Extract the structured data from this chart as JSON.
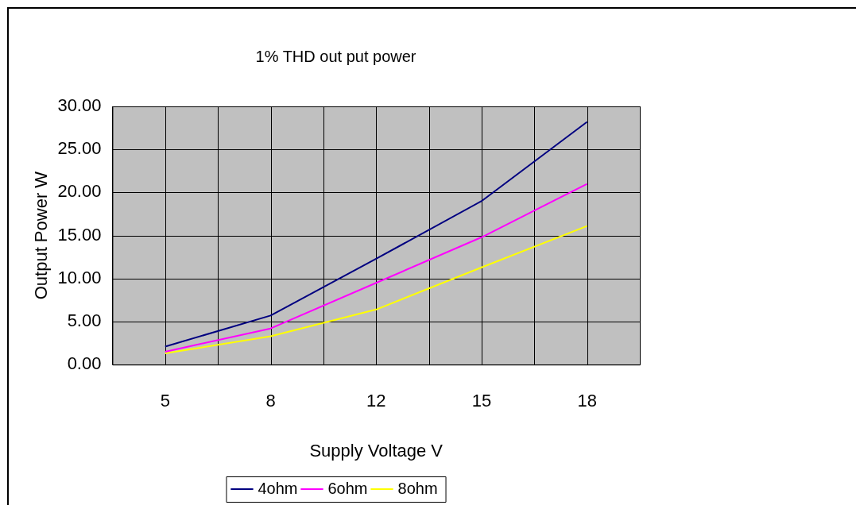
{
  "chart_data": {
    "type": "line",
    "title": "1% THD out put power",
    "xlabel": "Supply Voltage V",
    "ylabel": "Output Power W",
    "categories": [
      "5",
      "8",
      "12",
      "15",
      "18"
    ],
    "series": [
      {
        "name": "4ohm",
        "color": "#000080",
        "values": [
          2.1,
          5.7,
          12.3,
          19.0,
          28.2
        ]
      },
      {
        "name": "6ohm",
        "color": "#ff00ff",
        "values": [
          1.5,
          4.2,
          9.5,
          14.8,
          21.0
        ]
      },
      {
        "name": "8ohm",
        "color": "#ffff00",
        "values": [
          1.3,
          3.3,
          6.4,
          11.3,
          16.1
        ]
      }
    ],
    "ylim": [
      0,
      30
    ],
    "yticks": [
      {
        "value": 0,
        "label": "0.00"
      },
      {
        "value": 5,
        "label": "5.00"
      },
      {
        "value": 10,
        "label": "10.00"
      },
      {
        "value": 15,
        "label": "15.00"
      },
      {
        "value": 20,
        "label": "20.00"
      },
      {
        "value": 25,
        "label": "25.00"
      },
      {
        "value": 30,
        "label": "30.00"
      }
    ],
    "grid": true,
    "legend": "bottom",
    "marker": "none",
    "line_style": "solid"
  }
}
